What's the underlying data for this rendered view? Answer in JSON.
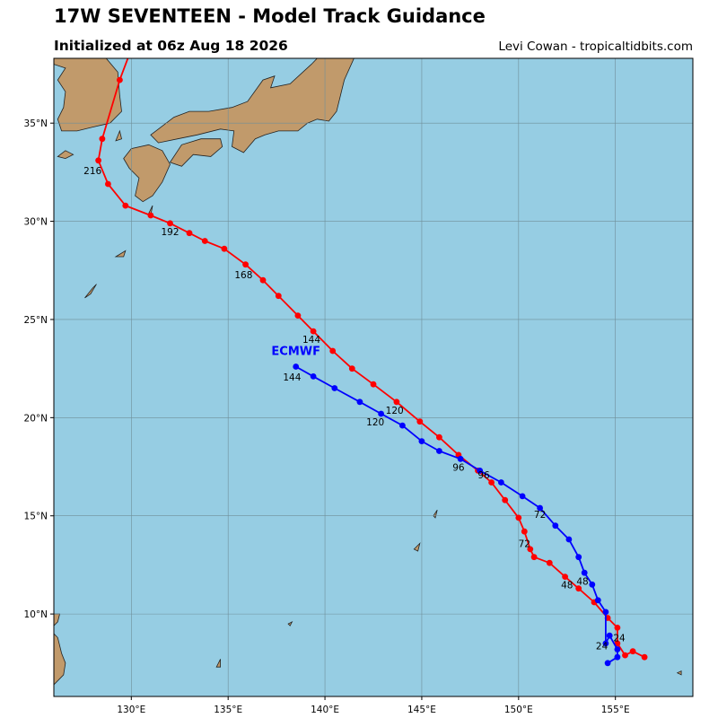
{
  "header": {
    "title": "17W SEVENTEEN - Model Track Guidance",
    "subtitle": "Initialized at 06z Aug 18 2026",
    "credit": "Levi Cowan - tropicaltidbits.com"
  },
  "map": {
    "lon_range": [
      126,
      159
    ],
    "lat_range": [
      5.8,
      38.3
    ],
    "lon_ticks": [
      130,
      135,
      140,
      145,
      150,
      155
    ],
    "lon_tick_labels": [
      "130°E",
      "135°E",
      "140°E",
      "145°E",
      "150°E",
      "155°E"
    ],
    "lat_ticks": [
      10,
      15,
      20,
      25,
      30,
      35
    ],
    "lat_tick_labels": [
      "10°N",
      "15°N",
      "20°N",
      "25°N",
      "30°N",
      "35°N"
    ],
    "colors": {
      "ocean": "#96cde3",
      "land": "#c19a6b",
      "coast": "#222222",
      "grid": "#6f8e99"
    }
  },
  "tracks": [
    {
      "color": "#ff0000",
      "points": [
        [
          156.5,
          7.8
        ],
        [
          155.9,
          8.1
        ],
        [
          155.5,
          7.9
        ],
        [
          155.1,
          8.5
        ],
        [
          155.1,
          9.3
        ],
        [
          154.6,
          9.8
        ],
        [
          153.9,
          10.6
        ],
        [
          153.1,
          11.3
        ],
        [
          152.4,
          11.9
        ],
        [
          151.6,
          12.6
        ],
        [
          150.8,
          12.9
        ],
        [
          150.6,
          13.3
        ],
        [
          150.3,
          14.2
        ],
        [
          150.0,
          14.9
        ],
        [
          149.3,
          15.8
        ],
        [
          148.6,
          16.7
        ],
        [
          147.9,
          17.3
        ],
        [
          146.9,
          18.1
        ],
        [
          145.9,
          19.0
        ],
        [
          144.9,
          19.8
        ],
        [
          143.7,
          20.8
        ],
        [
          142.5,
          21.7
        ],
        [
          141.4,
          22.5
        ],
        [
          140.4,
          23.4
        ],
        [
          139.4,
          24.4
        ],
        [
          138.6,
          25.2
        ],
        [
          137.6,
          26.2
        ],
        [
          136.8,
          27.0
        ],
        [
          135.9,
          27.8
        ],
        [
          134.8,
          28.6
        ],
        [
          133.8,
          29.0
        ],
        [
          133.0,
          29.4
        ],
        [
          132.0,
          29.9
        ],
        [
          131.0,
          30.3
        ],
        [
          129.7,
          30.8
        ],
        [
          128.8,
          31.9
        ],
        [
          128.3,
          33.1
        ],
        [
          128.5,
          34.2
        ],
        [
          129.4,
          37.2
        ],
        [
          129.9,
          38.5
        ]
      ],
      "labels": [
        {
          "text": "24",
          "lon": 155.2,
          "lat": 8.6
        },
        {
          "text": "48",
          "lon": 152.5,
          "lat": 11.3
        },
        {
          "text": "72",
          "lon": 150.3,
          "lat": 13.4
        },
        {
          "text": "96",
          "lon": 148.2,
          "lat": 16.9
        },
        {
          "text": "120",
          "lon": 143.6,
          "lat": 20.2
        },
        {
          "text": "144",
          "lon": 139.3,
          "lat": 23.8
        },
        {
          "text": "168",
          "lon": 135.8,
          "lat": 27.1
        },
        {
          "text": "192",
          "lon": 132.0,
          "lat": 29.3
        },
        {
          "text": "216",
          "lon": 128.0,
          "lat": 32.4
        }
      ]
    },
    {
      "color": "#0000ff",
      "model": "ECMWF",
      "points": [
        [
          154.6,
          7.5
        ],
        [
          155.1,
          7.8
        ],
        [
          155.1,
          8.2
        ],
        [
          154.7,
          8.9
        ],
        [
          154.5,
          8.5
        ],
        [
          154.5,
          10.1
        ],
        [
          154.1,
          10.7
        ],
        [
          153.8,
          11.5
        ],
        [
          153.4,
          12.1
        ],
        [
          153.1,
          12.9
        ],
        [
          152.6,
          13.8
        ],
        [
          151.9,
          14.5
        ],
        [
          151.1,
          15.4
        ],
        [
          150.2,
          16.0
        ],
        [
          149.1,
          16.7
        ],
        [
          148.0,
          17.3
        ],
        [
          147.0,
          17.9
        ],
        [
          145.9,
          18.3
        ],
        [
          145.0,
          18.8
        ],
        [
          144.0,
          19.6
        ],
        [
          142.9,
          20.2
        ],
        [
          141.8,
          20.8
        ],
        [
          140.5,
          21.5
        ],
        [
          139.4,
          22.1
        ],
        [
          138.5,
          22.6
        ]
      ],
      "labels": [
        {
          "text": "24",
          "lon": 154.3,
          "lat": 8.2
        },
        {
          "text": "48",
          "lon": 153.3,
          "lat": 11.5
        },
        {
          "text": "72",
          "lon": 151.1,
          "lat": 14.9
        },
        {
          "text": "96",
          "lon": 146.9,
          "lat": 17.3
        },
        {
          "text": "120",
          "lon": 142.6,
          "lat": 19.6
        },
        {
          "text": "144",
          "lon": 138.3,
          "lat": 21.9
        }
      ],
      "model_label": {
        "lon": 138.5,
        "lat": 23.2
      }
    }
  ],
  "land": [
    {
      "name": "korea",
      "points": [
        [
          126.0,
          38.3
        ],
        [
          128.7,
          38.3
        ],
        [
          129.3,
          37.6
        ],
        [
          129.4,
          36.4
        ],
        [
          129.5,
          35.6
        ],
        [
          128.9,
          35.0
        ],
        [
          128.0,
          34.8
        ],
        [
          127.2,
          34.6
        ],
        [
          126.4,
          34.6
        ],
        [
          126.2,
          35.2
        ],
        [
          126.5,
          35.8
        ],
        [
          126.6,
          36.6
        ],
        [
          126.2,
          37.2
        ],
        [
          126.6,
          37.8
        ],
        [
          126.0,
          38.0
        ]
      ]
    },
    {
      "name": "honshu",
      "points": [
        [
          131.0,
          34.4
        ],
        [
          131.4,
          34.7
        ],
        [
          132.2,
          35.3
        ],
        [
          133.0,
          35.6
        ],
        [
          134.0,
          35.6
        ],
        [
          135.2,
          35.8
        ],
        [
          136.0,
          36.1
        ],
        [
          136.8,
          37.2
        ],
        [
          137.4,
          37.4
        ],
        [
          137.2,
          36.8
        ],
        [
          138.2,
          37.0
        ],
        [
          139.3,
          38.0
        ],
        [
          139.6,
          38.3
        ],
        [
          141.5,
          38.3
        ],
        [
          141.0,
          37.2
        ],
        [
          140.8,
          36.4
        ],
        [
          140.6,
          35.6
        ],
        [
          140.2,
          35.1
        ],
        [
          139.6,
          35.2
        ],
        [
          139.1,
          35.0
        ],
        [
          138.6,
          34.6
        ],
        [
          137.6,
          34.6
        ],
        [
          136.9,
          34.4
        ],
        [
          136.4,
          34.2
        ],
        [
          135.8,
          33.5
        ],
        [
          135.2,
          33.8
        ],
        [
          135.3,
          34.6
        ],
        [
          134.6,
          34.7
        ],
        [
          133.4,
          34.4
        ],
        [
          132.4,
          34.2
        ],
        [
          131.4,
          34.0
        ]
      ]
    },
    {
      "name": "shikoku",
      "points": [
        [
          132.0,
          33.0
        ],
        [
          132.6,
          33.9
        ],
        [
          133.6,
          34.2
        ],
        [
          134.6,
          34.2
        ],
        [
          134.7,
          33.8
        ],
        [
          134.1,
          33.3
        ],
        [
          133.2,
          33.4
        ],
        [
          132.6,
          32.8
        ]
      ]
    },
    {
      "name": "kyushu",
      "points": [
        [
          129.6,
          33.2
        ],
        [
          130.0,
          33.7
        ],
        [
          130.9,
          33.9
        ],
        [
          131.6,
          33.6
        ],
        [
          132.0,
          32.9
        ],
        [
          131.6,
          32.0
        ],
        [
          131.1,
          31.3
        ],
        [
          130.6,
          31.0
        ],
        [
          130.2,
          31.3
        ],
        [
          130.4,
          32.2
        ],
        [
          129.9,
          32.7
        ]
      ]
    },
    {
      "name": "jeju",
      "points": [
        [
          126.2,
          33.3
        ],
        [
          126.6,
          33.6
        ],
        [
          127.0,
          33.4
        ],
        [
          126.6,
          33.2
        ]
      ]
    },
    {
      "name": "tsushima",
      "points": [
        [
          129.2,
          34.1
        ],
        [
          129.4,
          34.6
        ],
        [
          129.5,
          34.2
        ]
      ]
    },
    {
      "name": "tanegashima",
      "points": [
        [
          130.9,
          30.4
        ],
        [
          131.1,
          30.8
        ],
        [
          131.0,
          30.3
        ]
      ]
    },
    {
      "name": "amami",
      "points": [
        [
          129.2,
          28.2
        ],
        [
          129.7,
          28.5
        ],
        [
          129.6,
          28.2
        ]
      ]
    },
    {
      "name": "okinawa",
      "points": [
        [
          127.6,
          26.1
        ],
        [
          128.0,
          26.6
        ],
        [
          128.2,
          26.8
        ],
        [
          127.9,
          26.3
        ]
      ]
    },
    {
      "name": "palau",
      "points": [
        [
          134.4,
          7.3
        ],
        [
          134.6,
          7.7
        ],
        [
          134.6,
          7.3
        ]
      ]
    },
    {
      "name": "guam",
      "points": [
        [
          144.6,
          13.3
        ],
        [
          144.9,
          13.6
        ],
        [
          144.8,
          13.2
        ]
      ]
    },
    {
      "name": "saipan",
      "points": [
        [
          145.6,
          15.0
        ],
        [
          145.8,
          15.3
        ],
        [
          145.7,
          14.9
        ]
      ]
    },
    {
      "name": "luzon",
      "points": [
        [
          126.0,
          10.0
        ],
        [
          126.3,
          10.0
        ],
        [
          126.2,
          9.6
        ],
        [
          126.0,
          9.4
        ]
      ]
    },
    {
      "name": "mindanao",
      "points": [
        [
          126.0,
          9.0
        ],
        [
          126.2,
          8.8
        ],
        [
          126.4,
          8.0
        ],
        [
          126.6,
          7.5
        ],
        [
          126.5,
          6.9
        ],
        [
          126.1,
          6.5
        ],
        [
          126.0,
          6.4
        ]
      ]
    },
    {
      "name": "tiny1",
      "points": [
        [
          158.2,
          7.0
        ],
        [
          158.4,
          7.1
        ],
        [
          158.4,
          6.9
        ]
      ]
    },
    {
      "name": "tiny2",
      "points": [
        [
          138.1,
          9.5
        ],
        [
          138.3,
          9.6
        ],
        [
          138.2,
          9.4
        ]
      ]
    }
  ]
}
